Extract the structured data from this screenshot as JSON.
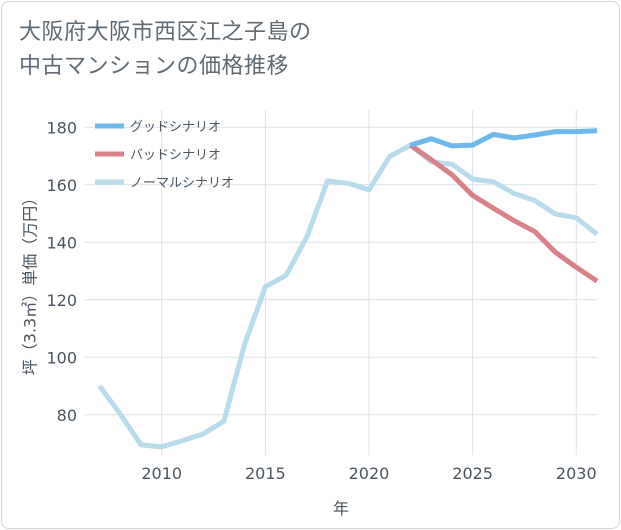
{
  "title_lines": [
    "大阪府大阪市西区江之子島の",
    "中古マンションの価格推移"
  ],
  "chart_data": {
    "type": "line",
    "xlabel": "年",
    "ylabel": "坪（3.3㎡）単価（万円）",
    "xlim": [
      2006.3,
      2031
    ],
    "ylim": [
      66,
      186
    ],
    "x_ticks": [
      2010,
      2015,
      2020,
      2025,
      2030
    ],
    "y_ticks": [
      80,
      100,
      120,
      140,
      160,
      180
    ],
    "grid": true,
    "legend_position": "top-left",
    "series": [
      {
        "name": "グッドシナリオ",
        "color": "#6db8ec",
        "x": [
          2022,
          2023,
          2024,
          2025,
          2026,
          2027,
          2028,
          2029,
          2030,
          2031
        ],
        "y": [
          173.8,
          176.0,
          173.5,
          173.8,
          177.5,
          176.3,
          177.3,
          178.5,
          178.5,
          178.8
        ]
      },
      {
        "name": "バッドシナリオ",
        "color": "#d98088",
        "x": [
          2022,
          2023,
          2024,
          2025,
          2026,
          2027,
          2028,
          2029,
          2030,
          2031
        ],
        "y": [
          173.8,
          168.7,
          163.5,
          156.3,
          151.8,
          147.5,
          143.7,
          136.5,
          131.3,
          126.5
        ]
      },
      {
        "name": "ノーマルシナリオ",
        "color": "#b9dcec",
        "x": [
          2007,
          2008,
          2009,
          2010,
          2011,
          2012,
          2013,
          2014,
          2015,
          2016,
          2017,
          2018,
          2019,
          2020,
          2021,
          2022,
          2023,
          2024,
          2025,
          2026,
          2027,
          2028,
          2029,
          2030,
          2031
        ],
        "y": [
          90.0,
          80.3,
          69.5,
          68.8,
          71.0,
          73.3,
          77.8,
          104.5,
          124.5,
          128.5,
          141.8,
          161.3,
          160.5,
          158.2,
          169.8,
          173.8,
          168.0,
          167.2,
          162.0,
          161.0,
          157.0,
          154.5,
          149.8,
          148.5,
          142.8
        ]
      }
    ]
  }
}
